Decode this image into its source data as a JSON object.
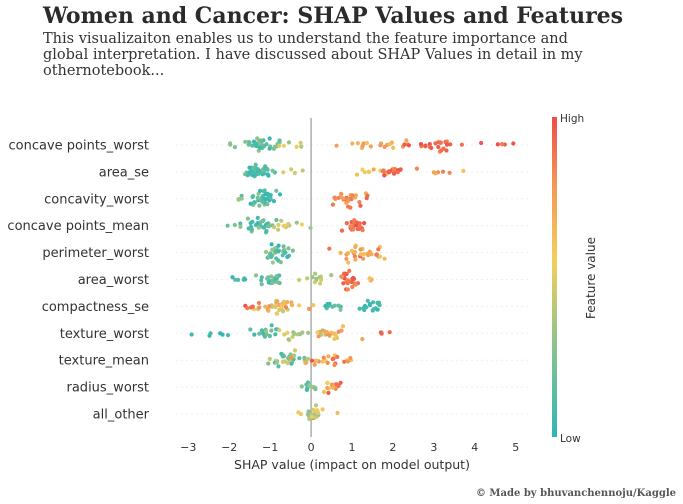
{
  "header": {
    "title": "Women and Cancer: SHAP Values and Features",
    "subtitle": "This visualizaiton enables us to understand the feature importance and global interpretation. I have discussed about SHAP Values in detail in my othernotebook...",
    "credit": "© Made by bhuvanchennoju/Kaggle"
  },
  "chart_data": {
    "type": "scatter",
    "subtype": "shap-beeswarm",
    "xlabel": "SHAP value (impact on model output)",
    "xlim": [
      -3.3,
      5.3
    ],
    "xticks": [
      -3,
      -2,
      -1,
      0,
      1,
      2,
      3,
      4,
      5
    ],
    "colorbar": {
      "label": "Feature value",
      "high_label": "High",
      "low_label": "Low",
      "colors": [
        "#2db6b8",
        "#8fc48a",
        "#f3cf5f",
        "#f39a57",
        "#ee4d49"
      ]
    },
    "features": [
      {
        "name": "concave points_worst",
        "clusters": [
          {
            "c": -1.15,
            "s": 0.22,
            "n": 36,
            "v": [
              0.02,
              0.28
            ],
            "h": 0.85
          },
          {
            "c": -1.85,
            "s": 0.08,
            "n": 3,
            "v": [
              0.05,
              0.3
            ],
            "h": 0.3
          },
          {
            "c": -0.4,
            "s": 0.3,
            "n": 5,
            "v": [
              0.3,
              0.6
            ],
            "h": 0.4
          },
          {
            "c": 1.6,
            "s": 0.45,
            "n": 18,
            "v": [
              0.55,
              0.8
            ],
            "h": 0.55
          },
          {
            "c": 3.0,
            "s": 0.35,
            "n": 22,
            "v": [
              0.8,
              1.0
            ],
            "h": 0.55
          },
          {
            "c": 4.3,
            "s": 0.4,
            "n": 6,
            "v": [
              0.8,
              1.0
            ],
            "h": 0.3
          }
        ]
      },
      {
        "name": "area_se",
        "clusters": [
          {
            "c": -1.3,
            "s": 0.18,
            "n": 44,
            "v": [
              0.0,
              0.2
            ],
            "h": 0.85
          },
          {
            "c": -0.35,
            "s": 0.2,
            "n": 4,
            "v": [
              0.25,
              0.5
            ],
            "h": 0.3
          },
          {
            "c": 1.5,
            "s": 0.35,
            "n": 10,
            "v": [
              0.45,
              0.7
            ],
            "h": 0.5
          },
          {
            "c": 2.0,
            "s": 0.15,
            "n": 18,
            "v": [
              0.8,
              1.0
            ],
            "h": 0.75
          },
          {
            "c": 2.7,
            "s": 0.45,
            "n": 6,
            "v": [
              0.6,
              0.85
            ],
            "h": 0.3
          },
          {
            "c": 3.8,
            "s": 0.05,
            "n": 1,
            "v": [
              0.55,
              0.6
            ],
            "h": 0.1
          }
        ]
      },
      {
        "name": "concavity_worst",
        "clusters": [
          {
            "c": -1.2,
            "s": 0.2,
            "n": 36,
            "v": [
              0.0,
              0.25
            ],
            "h": 0.85
          },
          {
            "c": -1.7,
            "s": 0.1,
            "n": 3,
            "v": [
              0.1,
              0.3
            ],
            "h": 0.3
          },
          {
            "c": 0.9,
            "s": 0.18,
            "n": 28,
            "v": [
              0.6,
              0.95
            ],
            "h": 0.8
          }
        ]
      },
      {
        "name": "concave points_mean",
        "clusters": [
          {
            "c": -1.15,
            "s": 0.2,
            "n": 30,
            "v": [
              0.0,
              0.25
            ],
            "h": 0.8
          },
          {
            "c": -0.5,
            "s": 0.25,
            "n": 14,
            "v": [
              0.25,
              0.5
            ],
            "h": 0.55
          },
          {
            "c": -1.9,
            "s": 0.12,
            "n": 3,
            "v": [
              0.05,
              0.25
            ],
            "h": 0.3
          },
          {
            "c": 1.1,
            "s": 0.12,
            "n": 22,
            "v": [
              0.8,
              1.0
            ],
            "h": 0.8
          }
        ]
      },
      {
        "name": "perimeter_worst",
        "clusters": [
          {
            "c": -0.8,
            "s": 0.2,
            "n": 32,
            "v": [
              0.0,
              0.3
            ],
            "h": 0.85
          },
          {
            "c": 1.2,
            "s": 0.3,
            "n": 30,
            "v": [
              0.55,
              1.0
            ],
            "h": 0.8
          }
        ]
      },
      {
        "name": "area_worst",
        "clusters": [
          {
            "c": -1.0,
            "s": 0.2,
            "n": 26,
            "v": [
              0.0,
              0.25
            ],
            "h": 0.8
          },
          {
            "c": -1.8,
            "s": 0.2,
            "n": 6,
            "v": [
              0.0,
              0.2
            ],
            "h": 0.4
          },
          {
            "c": 0.1,
            "s": 0.25,
            "n": 12,
            "v": [
              0.25,
              0.45
            ],
            "h": 0.5
          },
          {
            "c": 0.95,
            "s": 0.12,
            "n": 24,
            "v": [
              0.75,
              1.0
            ],
            "h": 0.85
          },
          {
            "c": 1.35,
            "s": 0.15,
            "n": 4,
            "v": [
              0.5,
              0.65
            ],
            "h": 0.3
          }
        ]
      },
      {
        "name": "compactness_se",
        "clusters": [
          {
            "c": -0.9,
            "s": 0.3,
            "n": 34,
            "v": [
              0.35,
              0.85
            ],
            "h": 0.85
          },
          {
            "c": 0.5,
            "s": 0.15,
            "n": 10,
            "v": [
              0.0,
              0.2
            ],
            "h": 0.6
          },
          {
            "c": 1.45,
            "s": 0.12,
            "n": 16,
            "v": [
              0.0,
              0.1
            ],
            "h": 0.85
          },
          {
            "c": -1.4,
            "s": 0.1,
            "n": 4,
            "v": [
              0.85,
              1.0
            ],
            "h": 0.3
          }
        ]
      },
      {
        "name": "texture_worst",
        "clusters": [
          {
            "c": -1.1,
            "s": 0.15,
            "n": 16,
            "v": [
              0.0,
              0.2
            ],
            "h": 0.8
          },
          {
            "c": -2.2,
            "s": 0.15,
            "n": 6,
            "v": [
              0.0,
              0.1
            ],
            "h": 0.4
          },
          {
            "c": -2.9,
            "s": 0.03,
            "n": 1,
            "v": [
              0.0,
              0.05
            ],
            "h": 0.1
          },
          {
            "c": -0.3,
            "s": 0.3,
            "n": 18,
            "v": [
              0.2,
              0.5
            ],
            "h": 0.7
          },
          {
            "c": 0.5,
            "s": 0.3,
            "n": 16,
            "v": [
              0.5,
              0.85
            ],
            "h": 0.7
          },
          {
            "c": 1.6,
            "s": 0.15,
            "n": 4,
            "v": [
              0.85,
              1.0
            ],
            "h": 0.3
          }
        ]
      },
      {
        "name": "texture_mean",
        "clusters": [
          {
            "c": -0.6,
            "s": 0.3,
            "n": 30,
            "v": [
              0.05,
              0.45
            ],
            "h": 0.85
          },
          {
            "c": 0.5,
            "s": 0.4,
            "n": 24,
            "v": [
              0.5,
              1.0
            ],
            "h": 0.55
          }
        ]
      },
      {
        "name": "radius_worst",
        "clusters": [
          {
            "c": -0.05,
            "s": 0.08,
            "n": 12,
            "v": [
              0.05,
              0.3
            ],
            "h": 0.7
          },
          {
            "c": 0.45,
            "s": 0.2,
            "n": 16,
            "v": [
              0.45,
              0.95
            ],
            "h": 0.7
          }
        ]
      },
      {
        "name": "all_other",
        "clusters": [
          {
            "c": 0.05,
            "s": 0.1,
            "n": 24,
            "v": [
              0.1,
              0.6
            ],
            "h": 0.8
          },
          {
            "c": -0.3,
            "s": 0.05,
            "n": 2,
            "v": [
              0.4,
              0.6
            ],
            "h": 0.2
          },
          {
            "c": 0.6,
            "s": 0.05,
            "n": 1,
            "v": [
              0.5,
              0.6
            ],
            "h": 0.1
          }
        ]
      }
    ]
  }
}
